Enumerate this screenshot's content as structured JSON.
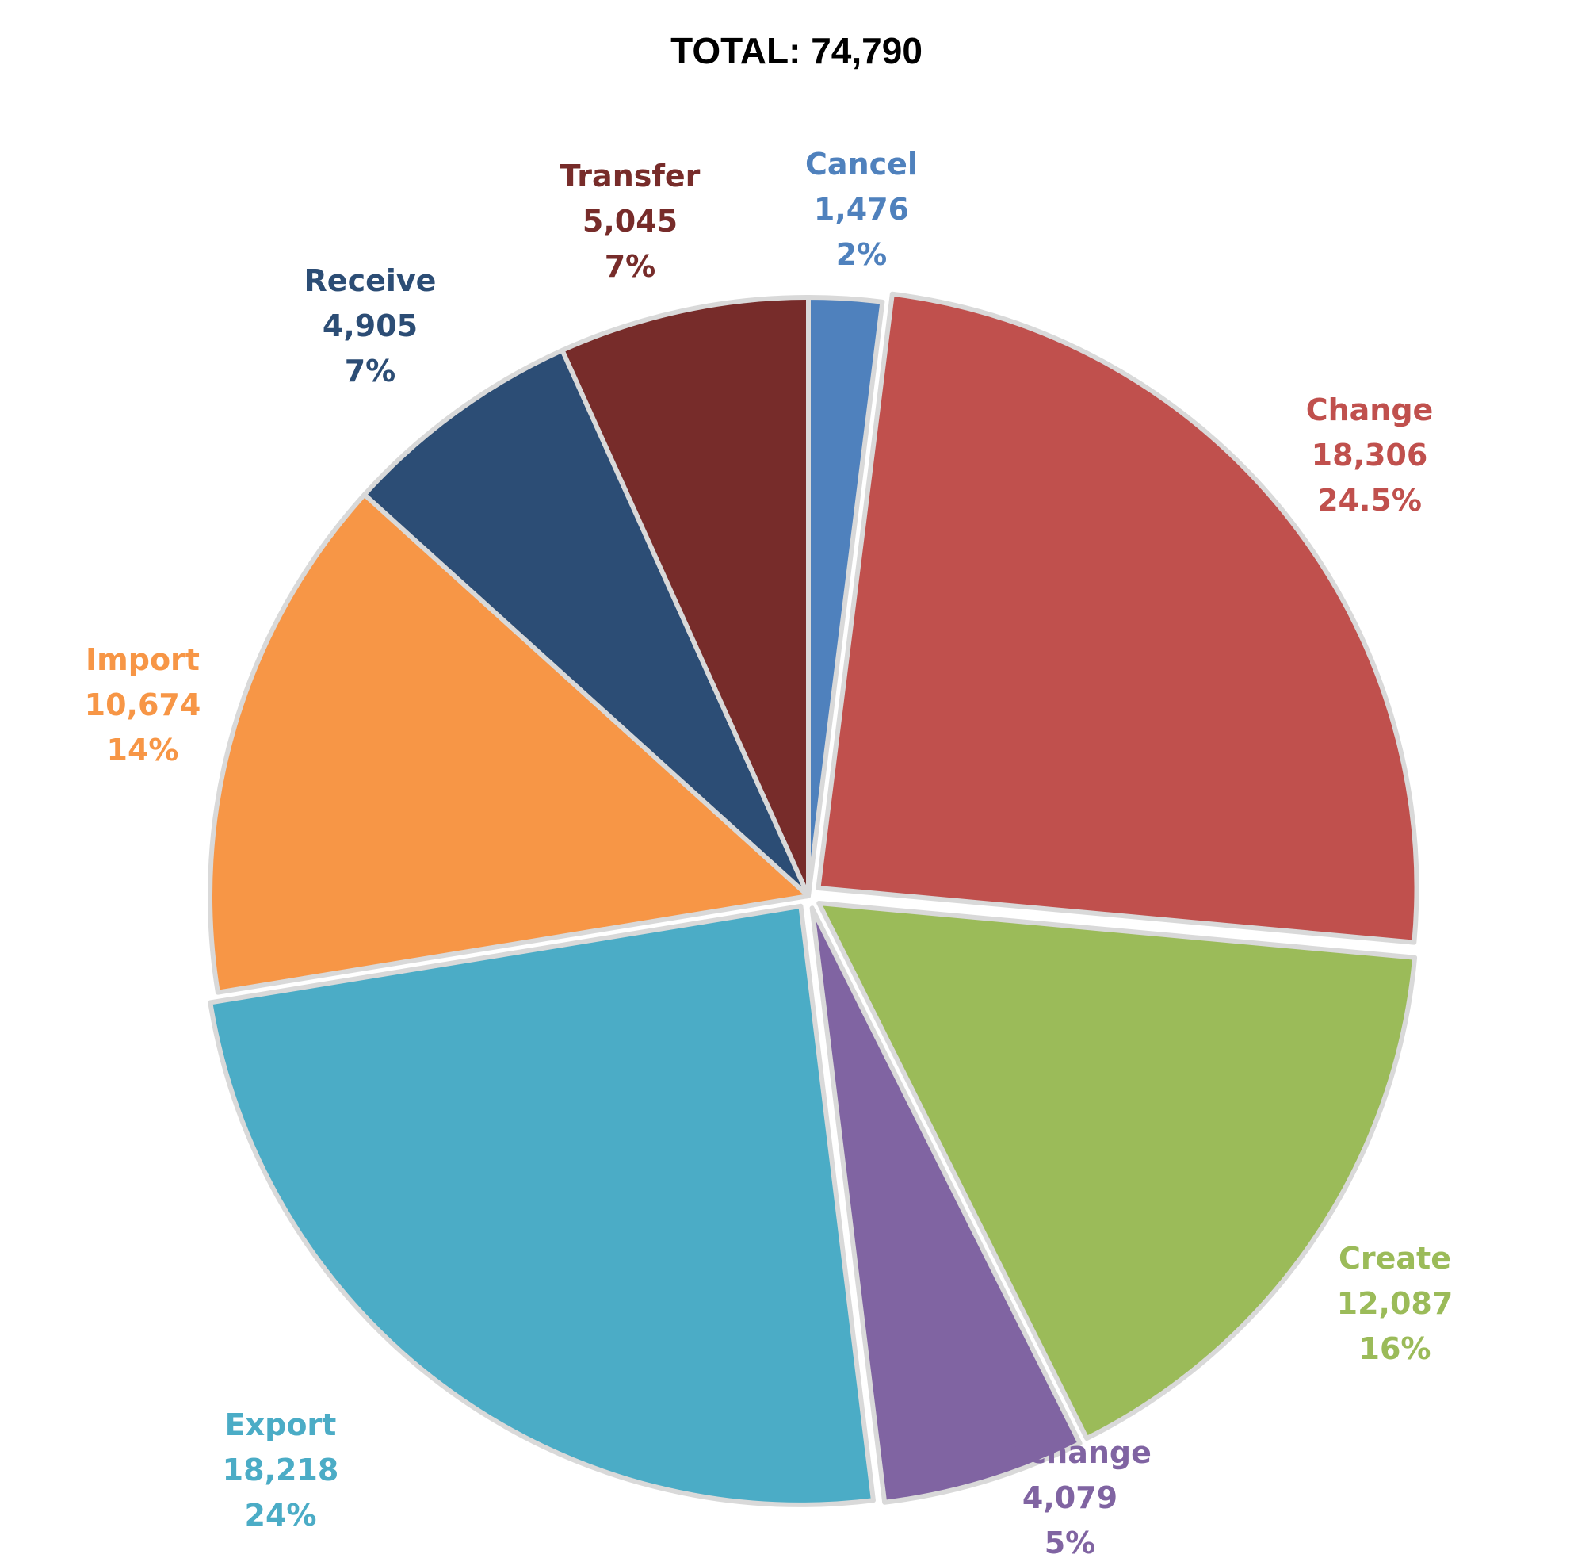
{
  "chart_data": {
    "type": "pie",
    "title": "TOTAL: 74,790",
    "start_angle_deg": 0,
    "direction": "clockwise",
    "slices": [
      {
        "name": "Cancel",
        "value": 1476,
        "value_label": "1,476",
        "pct_label": "2%",
        "color": "#4F81BD",
        "exploded": false
      },
      {
        "name": "Change",
        "value": 18306,
        "value_label": "18,306",
        "pct_label": "24.5%",
        "color": "#C0504D",
        "exploded": true
      },
      {
        "name": "Create",
        "value": 12087,
        "value_label": "12,087",
        "pct_label": "16%",
        "color": "#9BBB59",
        "exploded": true
      },
      {
        "name": "Exchange",
        "value": 4079,
        "value_label": "4,079",
        "pct_label": "5%",
        "color": "#8064A2",
        "exploded": true
      },
      {
        "name": "Export",
        "value": 18218,
        "value_label": "18,218",
        "pct_label": "24%",
        "color": "#4BACC6",
        "exploded": true
      },
      {
        "name": "Import",
        "value": 10674,
        "value_label": "10,674",
        "pct_label": "14%",
        "color": "#F79646",
        "exploded": false
      },
      {
        "name": "Receive",
        "value": 4905,
        "value_label": "4,905",
        "pct_label": "7%",
        "color": "#2C4D75",
        "exploded": false
      },
      {
        "name": "Transfer",
        "value": 5045,
        "value_label": "5,045",
        "pct_label": "7%",
        "color": "#772C2A",
        "exploded": false
      }
    ]
  }
}
